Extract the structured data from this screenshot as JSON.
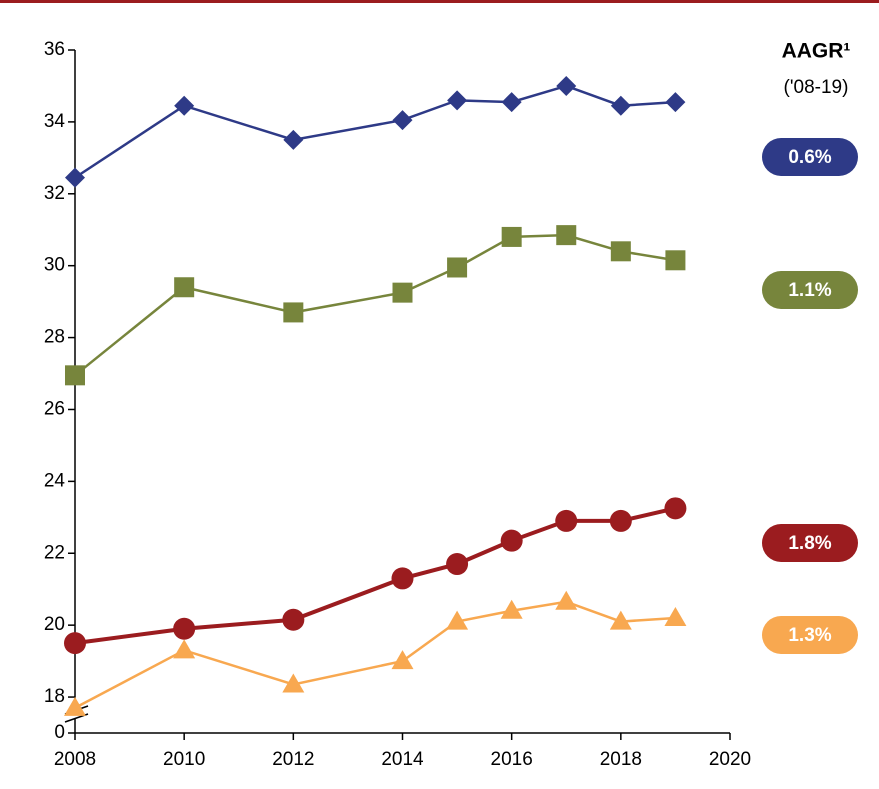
{
  "chart_data": {
    "type": "line",
    "annotation_title": "AAGR¹",
    "annotation_subtitle": "('08-19)",
    "x": [
      2008,
      2010,
      2012,
      2014,
      2015,
      2016,
      2017,
      2018,
      2019
    ],
    "xlim": [
      2008,
      2020
    ],
    "xticks": [
      2008,
      2010,
      2012,
      2014,
      2016,
      2018,
      2020
    ],
    "ylim": [
      0,
      36
    ],
    "yticks": [
      0,
      18,
      20,
      22,
      24,
      26,
      28,
      30,
      32,
      34,
      36
    ],
    "y_break": [
      0,
      17
    ],
    "series": [
      {
        "color": "#2e3a87",
        "marker": "diamond",
        "label": "0.6%",
        "values": [
          32.45,
          34.45,
          33.5,
          34.05,
          34.6,
          34.55,
          35.0,
          34.45,
          34.55
        ]
      },
      {
        "color": "#77853c",
        "marker": "square",
        "label": "1.1%",
        "values": [
          26.95,
          29.4,
          28.7,
          29.25,
          29.95,
          30.8,
          30.85,
          30.4,
          30.15
        ]
      },
      {
        "color": "#9b1c1f",
        "marker": "circle",
        "label": "1.8%",
        "values": [
          19.5,
          19.9,
          20.15,
          21.3,
          21.7,
          22.35,
          22.9,
          22.9,
          23.25
        ]
      },
      {
        "color": "#f8a850",
        "marker": "triangle",
        "label": "1.3%",
        "values": [
          17.7,
          19.3,
          18.35,
          19.0,
          20.1,
          20.4,
          20.65,
          20.1,
          20.2
        ]
      }
    ]
  }
}
